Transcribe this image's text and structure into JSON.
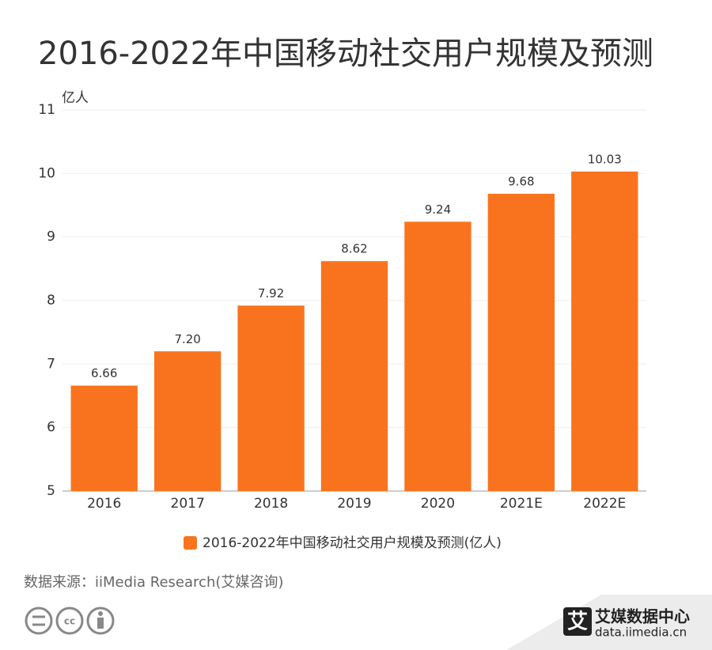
{
  "chart_data": {
    "type": "bar",
    "title": "2016-2022年中国移动社交用户规模及预测",
    "y_label": "亿人",
    "categories": [
      "2016",
      "2017",
      "2018",
      "2019",
      "2020",
      "2021E",
      "2022E"
    ],
    "series": [
      {
        "name": "2016-2022年中国移动社交用户规模及预测(亿人)",
        "color": "#f9731e",
        "values": [
          6.66,
          7.2,
          7.92,
          8.62,
          9.24,
          9.68,
          10.03
        ],
        "value_labels": [
          "6.66",
          "7.20",
          "7.92",
          "8.62",
          "9.24",
          "9.68",
          "10.03"
        ]
      }
    ],
    "ylim": [
      5,
      11
    ],
    "yticks": [
      5,
      6,
      7,
      8,
      9,
      10,
      11
    ],
    "grid": true
  },
  "source": "数据来源：iiMedia Research(艾媒咨询)",
  "logo": {
    "icon": "艾",
    "name": "艾媒数据中心",
    "url": "data.iimedia.cn"
  }
}
